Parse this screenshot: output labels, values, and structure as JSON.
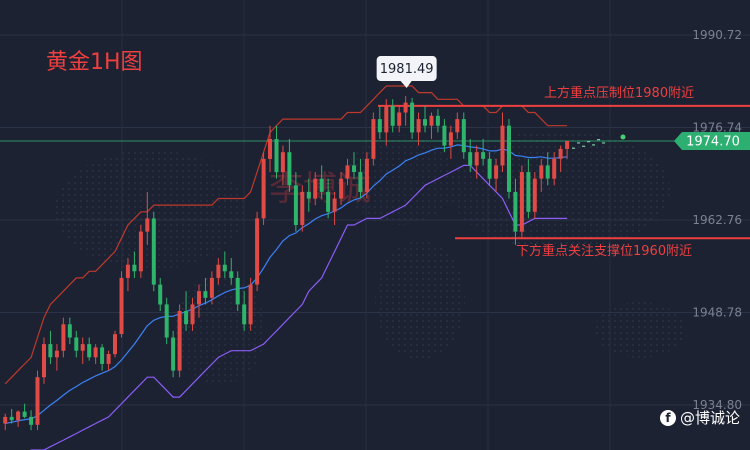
{
  "chart_title": "黄金1H图",
  "brand": {
    "icon": "facebook-icon",
    "text": "@博诚论"
  },
  "watermark": "李博诚",
  "colors": {
    "background": "#1c2232",
    "bull": "#e04b45",
    "bear": "#2fb56b",
    "upper_band": "#c0392b",
    "middle_band": "#3b82f6",
    "lower_band": "#8b5cf6",
    "level_line": "#ef3f3f",
    "current_price_tag": "#2eaf72"
  },
  "chart_data": {
    "type": "candlestick",
    "timeframe": "1H",
    "yaxis": {
      "range": [
        1928,
        1996
      ],
      "ticks": [
        1990.72,
        1976.74,
        1962.76,
        1948.78,
        1934.8
      ],
      "position": "right"
    },
    "current_price": 1974.7,
    "peak_label": 1981.49,
    "levels": [
      {
        "price": 1980.0,
        "label": "上方重点压制位1980附近"
      },
      {
        "price": 1960.0,
        "label": "下方重点关注支撑位1960附近"
      }
    ],
    "candles": [
      [
        1932.0,
        1933.5,
        1931.0,
        1933.0
      ],
      [
        1933.0,
        1934.2,
        1932.0,
        1932.5
      ],
      [
        1932.5,
        1934.0,
        1931.5,
        1933.8
      ],
      [
        1933.8,
        1935.0,
        1932.8,
        1933.0
      ],
      [
        1933.0,
        1934.0,
        1931.0,
        1931.8
      ],
      [
        1931.8,
        1940.0,
        1931.0,
        1939.0
      ],
      [
        1939.0,
        1945.0,
        1938.0,
        1944.0
      ],
      [
        1944.0,
        1946.0,
        1941.0,
        1942.0
      ],
      [
        1942.0,
        1944.0,
        1940.0,
        1943.0
      ],
      [
        1943.0,
        1948.0,
        1942.0,
        1947.0
      ],
      [
        1947.0,
        1948.0,
        1944.0,
        1945.0
      ],
      [
        1945.0,
        1946.0,
        1942.0,
        1943.0
      ],
      [
        1943.0,
        1945.0,
        1941.0,
        1944.0
      ],
      [
        1944.0,
        1945.0,
        1941.5,
        1942.0
      ],
      [
        1942.0,
        1944.0,
        1941.0,
        1943.5
      ],
      [
        1943.5,
        1944.0,
        1940.0,
        1941.0
      ],
      [
        1941.0,
        1943.0,
        1940.0,
        1942.5
      ],
      [
        1942.5,
        1946.0,
        1942.0,
        1945.5
      ],
      [
        1945.5,
        1955.0,
        1945.0,
        1954.0
      ],
      [
        1954.0,
        1957.0,
        1952.0,
        1956.0
      ],
      [
        1956.0,
        1958.0,
        1954.0,
        1955.0
      ],
      [
        1955.0,
        1962.0,
        1954.0,
        1961.0
      ],
      [
        1961.0,
        1967.0,
        1959.0,
        1963.0
      ],
      [
        1963.0,
        1964.0,
        1952.0,
        1953.0
      ],
      [
        1953.0,
        1954.0,
        1949.0,
        1950.0
      ],
      [
        1950.0,
        1951.0,
        1944.0,
        1945.0
      ],
      [
        1945.0,
        1946.0,
        1939.0,
        1940.0
      ],
      [
        1940.0,
        1950.0,
        1939.0,
        1949.0
      ],
      [
        1949.0,
        1952.0,
        1946.0,
        1947.0
      ],
      [
        1947.0,
        1951.0,
        1946.0,
        1950.0
      ],
      [
        1950.0,
        1953.0,
        1948.0,
        1952.0
      ],
      [
        1952.0,
        1954.0,
        1950.0,
        1951.0
      ],
      [
        1951.0,
        1955.0,
        1950.0,
        1954.0
      ],
      [
        1954.0,
        1957.0,
        1953.0,
        1956.0
      ],
      [
        1956.0,
        1958.0,
        1954.0,
        1955.0
      ],
      [
        1955.0,
        1957.0,
        1953.0,
        1954.0
      ],
      [
        1954.0,
        1955.0,
        1949.0,
        1950.0
      ],
      [
        1950.0,
        1952.0,
        1946.0,
        1947.0
      ],
      [
        1947.0,
        1954.0,
        1946.0,
        1953.0
      ],
      [
        1953.0,
        1964.0,
        1952.0,
        1963.0
      ],
      [
        1963.0,
        1973.0,
        1962.0,
        1972.0
      ],
      [
        1972.0,
        1977.0,
        1970.0,
        1975.0
      ],
      [
        1975.0,
        1977.0,
        1969.0,
        1970.0
      ],
      [
        1970.0,
        1974.0,
        1968.0,
        1973.0
      ],
      [
        1973.0,
        1975.0,
        1967.0,
        1968.0
      ],
      [
        1968.0,
        1970.0,
        1961.0,
        1962.0
      ],
      [
        1962.0,
        1968.0,
        1961.0,
        1967.0
      ],
      [
        1967.0,
        1969.0,
        1964.0,
        1966.0
      ],
      [
        1966.0,
        1970.0,
        1965.0,
        1969.0
      ],
      [
        1969.0,
        1971.0,
        1966.0,
        1967.0
      ],
      [
        1967.0,
        1969.0,
        1963.0,
        1964.0
      ],
      [
        1964.0,
        1967.0,
        1962.0,
        1966.0
      ],
      [
        1966.0,
        1970.0,
        1965.0,
        1969.0
      ],
      [
        1969.0,
        1972.0,
        1968.0,
        1971.0
      ],
      [
        1971.0,
        1973.0,
        1969.0,
        1970.0
      ],
      [
        1970.0,
        1972.0,
        1966.0,
        1967.0
      ],
      [
        1967.0,
        1973.0,
        1966.0,
        1972.0
      ],
      [
        1972.0,
        1979.0,
        1971.0,
        1978.0
      ],
      [
        1978.0,
        1980.0,
        1975.0,
        1976.0
      ],
      [
        1976.0,
        1981.0,
        1974.0,
        1980.0
      ],
      [
        1980.0,
        1981.0,
        1976.0,
        1977.0
      ],
      [
        1977.0,
        1980.0,
        1976.0,
        1979.0
      ],
      [
        1979.0,
        1981.49,
        1977.0,
        1980.5
      ],
      [
        1980.5,
        1981.2,
        1975.0,
        1976.0
      ],
      [
        1976.0,
        1979.0,
        1974.0,
        1978.0
      ],
      [
        1978.0,
        1980.0,
        1976.0,
        1977.0
      ],
      [
        1977.0,
        1979.0,
        1975.0,
        1978.5
      ],
      [
        1978.5,
        1979.5,
        1976.0,
        1977.0
      ],
      [
        1977.0,
        1978.0,
        1973.0,
        1974.0
      ],
      [
        1974.0,
        1977.0,
        1972.0,
        1976.0
      ],
      [
        1976.0,
        1979.0,
        1975.0,
        1978.0
      ],
      [
        1978.0,
        1979.0,
        1972.0,
        1973.0
      ],
      [
        1973.0,
        1975.0,
        1970.0,
        1971.0
      ],
      [
        1971.0,
        1974.0,
        1969.0,
        1973.0
      ],
      [
        1973.0,
        1975.0,
        1971.0,
        1972.0
      ],
      [
        1972.0,
        1973.0,
        1968.0,
        1969.0
      ],
      [
        1969.0,
        1972.0,
        1967.0,
        1971.0
      ],
      [
        1971.0,
        1979.0,
        1970.0,
        1977.0
      ],
      [
        1977.0,
        1978.0,
        1966.0,
        1967.0
      ],
      [
        1967.0,
        1969.0,
        1959.0,
        1961.0
      ],
      [
        1961.0,
        1971.0,
        1960.0,
        1970.0
      ],
      [
        1970.0,
        1972.0,
        1963.0,
        1964.0
      ],
      [
        1964.0,
        1970.0,
        1963.0,
        1969.0
      ],
      [
        1969.0,
        1972.0,
        1967.0,
        1971.0
      ],
      [
        1971.0,
        1973.0,
        1968.0,
        1969.0
      ],
      [
        1969.0,
        1973.0,
        1968.0,
        1972.0
      ],
      [
        1972.0,
        1974.0,
        1970.0,
        1973.5
      ],
      [
        1973.5,
        1974.5,
        1972.0,
        1974.7
      ]
    ],
    "bands": {
      "upper": [
        1938,
        1939,
        1940,
        1941,
        1942,
        1945,
        1948,
        1950,
        1951,
        1952,
        1953,
        1954,
        1954,
        1955,
        1955,
        1956,
        1957,
        1958,
        1960,
        1962,
        1963,
        1964,
        1964,
        1965,
        1965,
        1965,
        1965,
        1965,
        1965,
        1965,
        1965,
        1965,
        1965,
        1966,
        1966,
        1966,
        1966,
        1966,
        1967,
        1970,
        1973,
        1976,
        1977,
        1978,
        1978,
        1978,
        1978,
        1978,
        1978,
        1978,
        1978,
        1978,
        1978,
        1979,
        1979,
        1979,
        1980,
        1981,
        1982,
        1983,
        1983,
        1983,
        1983,
        1983,
        1982,
        1982,
        1982,
        1981,
        1981,
        1981,
        1981,
        1980,
        1980,
        1980,
        1980,
        1979,
        1979,
        1980,
        1980,
        1980,
        1980,
        1979,
        1979,
        1978,
        1977,
        1977,
        1977,
        1977
      ],
      "middle": [
        1932,
        1932.2,
        1932.4,
        1932.6,
        1932.7,
        1933.2,
        1934,
        1934.8,
        1935.5,
        1936.3,
        1937,
        1937.6,
        1938.2,
        1938.7,
        1939.2,
        1939.6,
        1940,
        1940.6,
        1941.6,
        1942.8,
        1944,
        1945.4,
        1946.8,
        1947.6,
        1948,
        1948.2,
        1948.2,
        1948.6,
        1948.9,
        1949.3,
        1949.8,
        1950.2,
        1950.7,
        1951.3,
        1951.8,
        1952.2,
        1952.4,
        1952.5,
        1952.9,
        1954,
        1955.5,
        1957.1,
        1958.3,
        1959.6,
        1960.4,
        1960.8,
        1961.6,
        1962.2,
        1962.9,
        1963.4,
        1963.7,
        1964.1,
        1964.6,
        1965.3,
        1965.8,
        1966.1,
        1966.8,
        1967.9,
        1968.7,
        1969.7,
        1970.3,
        1970.9,
        1971.7,
        1972.1,
        1972.6,
        1972.9,
        1973.3,
        1973.6,
        1973.6,
        1973.8,
        1974.1,
        1974.0,
        1973.8,
        1973.7,
        1973.5,
        1973.2,
        1973.2,
        1973.5,
        1973.2,
        1972.5,
        1972.4,
        1972.2,
        1972.2,
        1972.3,
        1972.1,
        1972.1,
        1972.2,
        1972.3
      ],
      "lower": [
        1926,
        1926.5,
        1927,
        1927.5,
        1928,
        1928,
        1928,
        1928.5,
        1929,
        1929.5,
        1930,
        1930.5,
        1931,
        1931.5,
        1932,
        1932.5,
        1933,
        1934,
        1935,
        1936,
        1937,
        1938,
        1939,
        1939,
        1938,
        1937,
        1936,
        1936,
        1937,
        1938,
        1939,
        1940,
        1941,
        1942,
        1942.5,
        1943,
        1943,
        1943,
        1943,
        1943.5,
        1944,
        1945,
        1946,
        1947,
        1948,
        1949,
        1950,
        1952,
        1953,
        1954,
        1956,
        1958,
        1960,
        1962,
        1962,
        1962.5,
        1963,
        1963,
        1963,
        1963.5,
        1964,
        1964.5,
        1965,
        1966,
        1967,
        1968,
        1968.5,
        1969,
        1969.5,
        1970,
        1970.5,
        1971,
        1971,
        1970,
        1969,
        1968,
        1967,
        1966,
        1964,
        1962,
        1962,
        1962.5,
        1963,
        1963,
        1963,
        1963,
        1963,
        1963
      ]
    },
    "projection": [
      1973.6,
      1974.4,
      1973.9,
      1974.6,
      1974.1,
      1974.9,
      1974.4
    ]
  }
}
